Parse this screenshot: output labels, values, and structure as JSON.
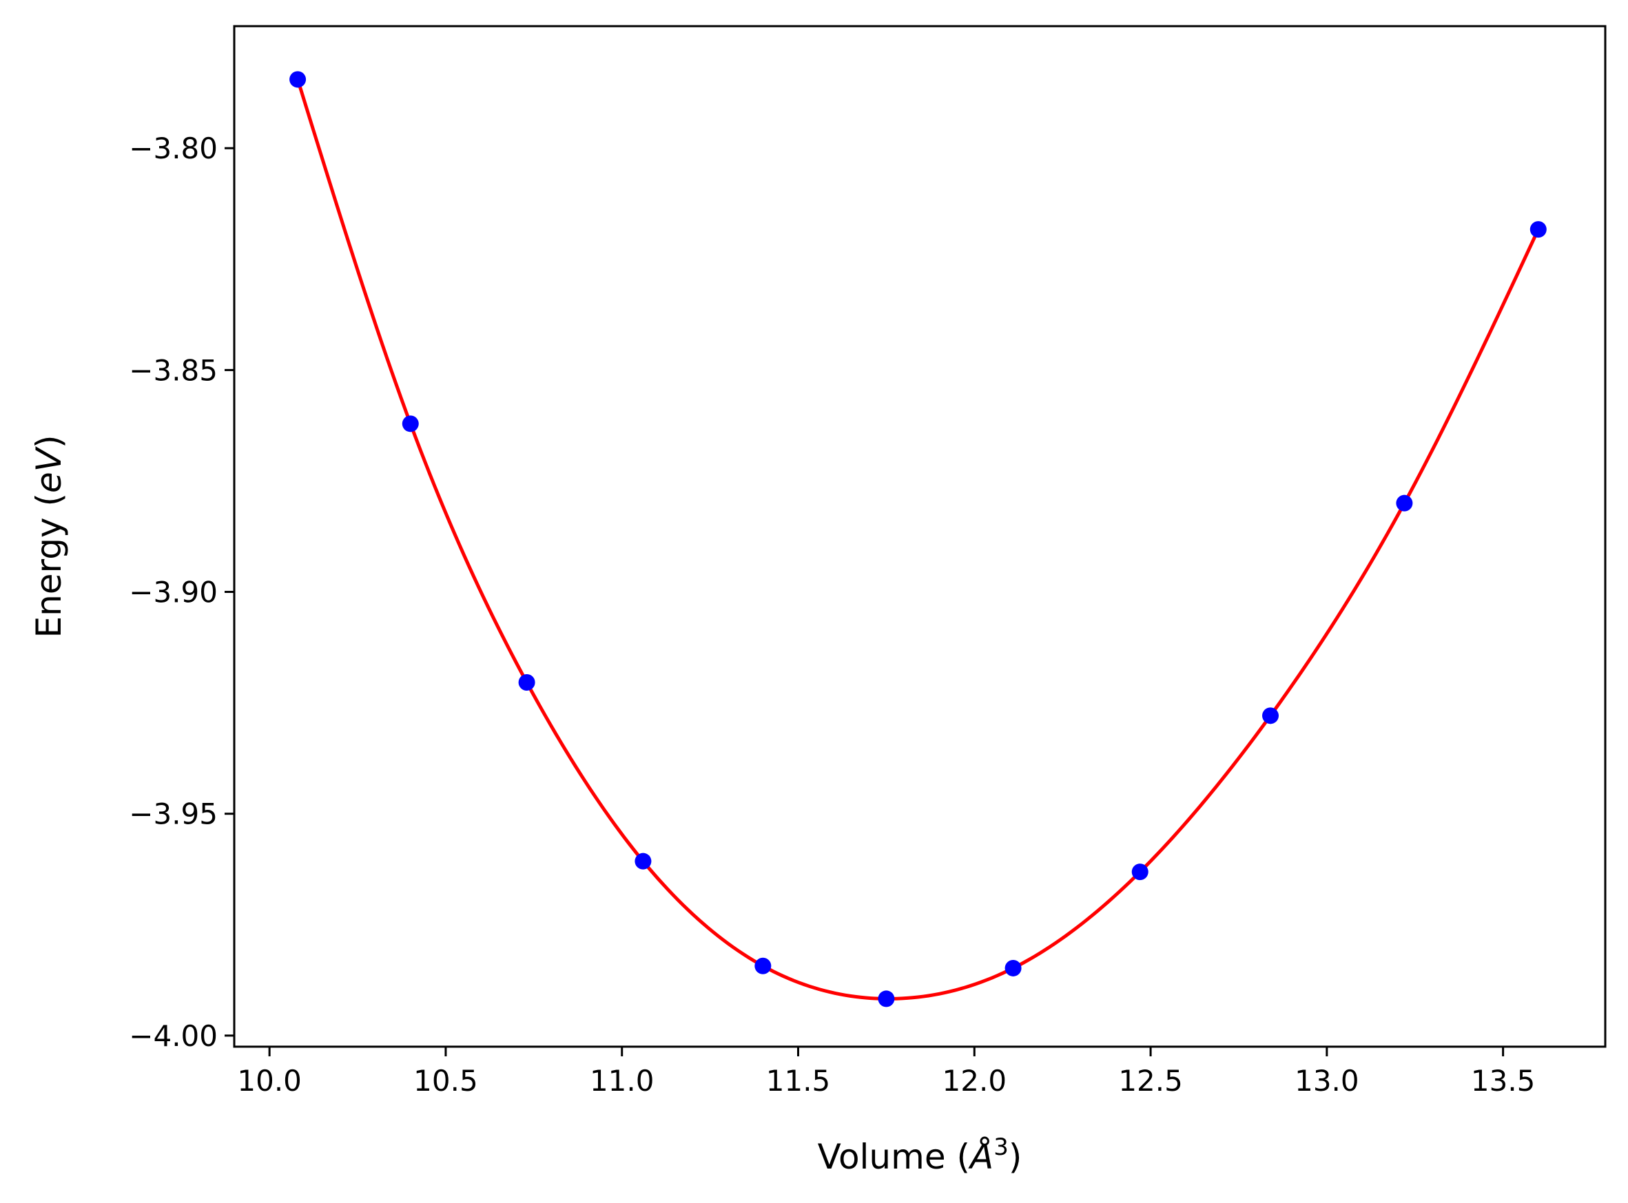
{
  "chart_data": {
    "type": "scatter",
    "title": "",
    "xlabel": "Volume (Å³)",
    "xlabel_parts": {
      "prefix": "Volume (",
      "symbol": "Å",
      "exponent": "3",
      "suffix": ")"
    },
    "ylabel": "Energy (eV)",
    "ylabel_parts": {
      "prefix": "Energy (",
      "symbol": "eV",
      "suffix": ")"
    },
    "xlim": [
      9.9,
      13.79
    ],
    "ylim": [
      -4.0025,
      -3.7725
    ],
    "xticks": [
      10.0,
      10.5,
      11.0,
      11.5,
      12.0,
      12.5,
      13.0,
      13.5
    ],
    "xtick_labels": [
      "10.0",
      "10.5",
      "11.0",
      "11.5",
      "12.0",
      "12.5",
      "13.0",
      "13.5"
    ],
    "yticks": [
      -3.8,
      -3.85,
      -3.9,
      -3.95,
      -4.0
    ],
    "ytick_labels": [
      "−3.80",
      "−3.85",
      "−3.90",
      "−3.95",
      "−4.00"
    ],
    "grid": false,
    "series": [
      {
        "kind": "points",
        "color": "#0000ff",
        "x": [
          10.08,
          10.4,
          10.73,
          11.06,
          11.4,
          11.75,
          12.11,
          12.47,
          12.84,
          13.22,
          13.6
        ],
        "y": [
          -3.7845,
          -3.8621,
          -3.9204,
          -3.9607,
          -3.9843,
          -3.9917,
          -3.9848,
          -3.9631,
          -3.9279,
          -3.88,
          -3.8183
        ]
      },
      {
        "kind": "fit-curve",
        "color": "#ff0000",
        "x": [
          10.08,
          10.4,
          10.73,
          11.06,
          11.4,
          11.75,
          12.11,
          12.47,
          12.84,
          13.22,
          13.6
        ],
        "y": [
          -3.7845,
          -3.8621,
          -3.9204,
          -3.9607,
          -3.9843,
          -3.9917,
          -3.9848,
          -3.9631,
          -3.9279,
          -3.88,
          -3.8183
        ]
      }
    ]
  }
}
